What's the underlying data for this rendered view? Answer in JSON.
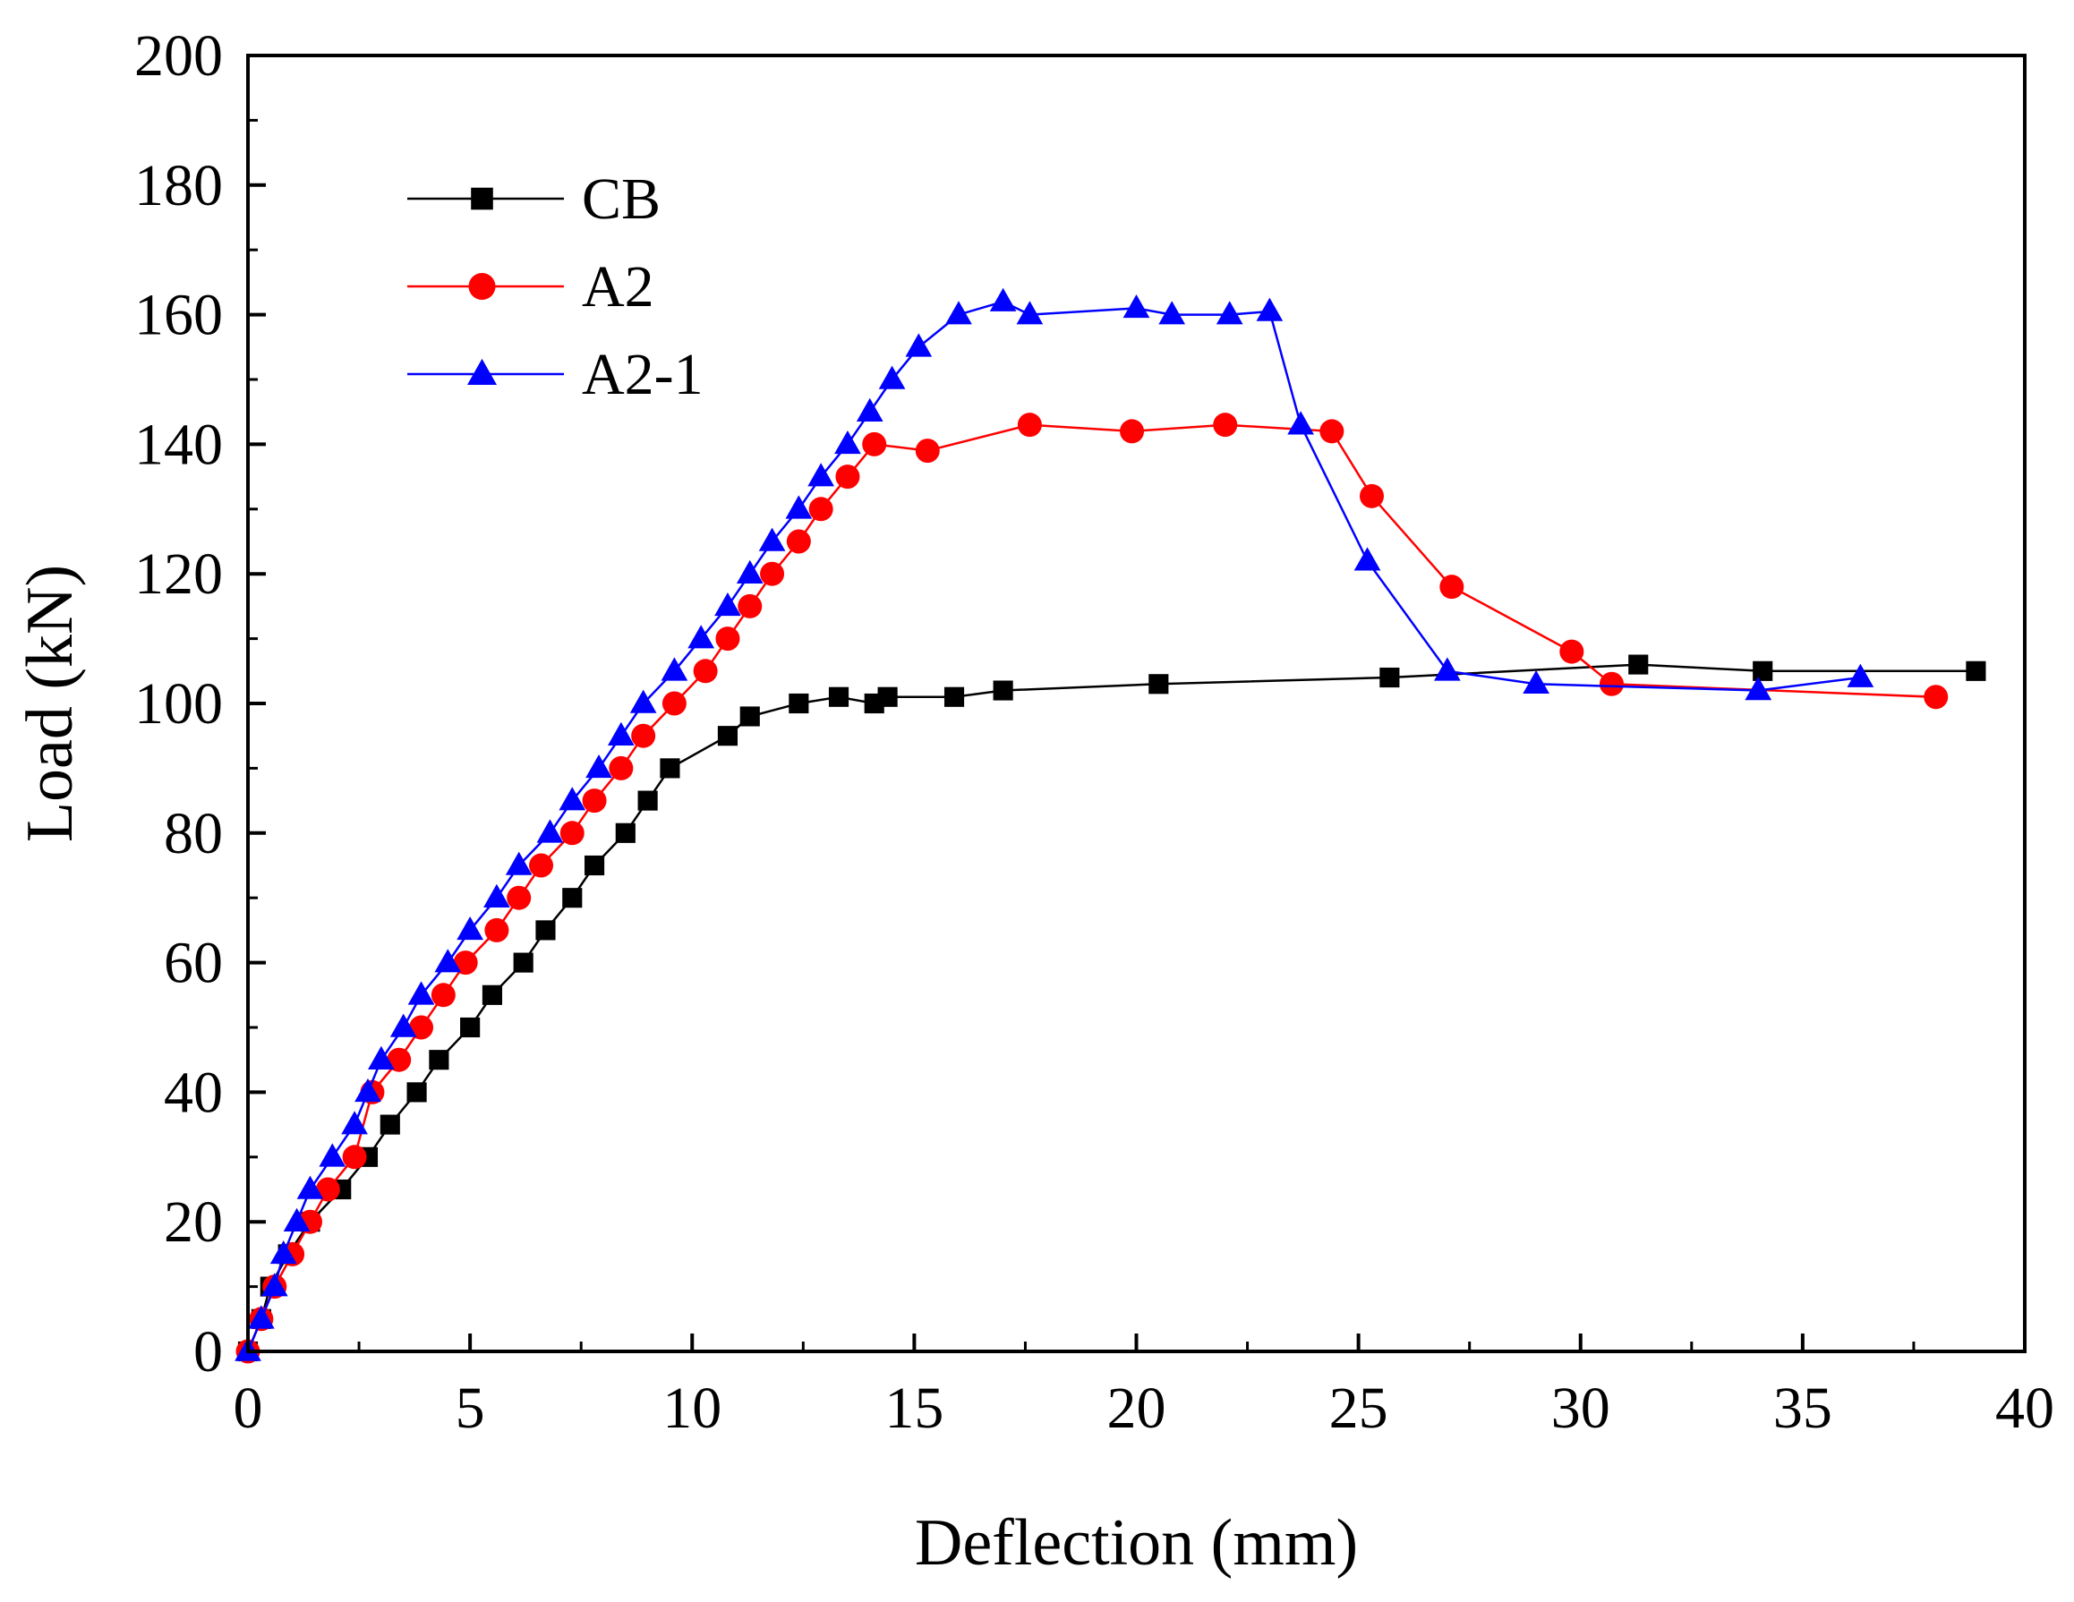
{
  "chart_data": {
    "type": "line",
    "title": "",
    "xlabel": "Deflection (mm)",
    "ylabel": "Load (kN)",
    "xlim": [
      0,
      40
    ],
    "ylim": [
      0,
      200
    ],
    "xticks": [
      0,
      5,
      10,
      15,
      20,
      25,
      30,
      35,
      40
    ],
    "yticks": [
      0,
      20,
      40,
      60,
      80,
      100,
      120,
      140,
      160,
      180,
      200
    ],
    "grid": false,
    "legend_position": "top-left",
    "series": [
      {
        "name": "CB",
        "color": "#000000",
        "marker": "square",
        "x": [
          0,
          0.3,
          0.5,
          0.9,
          1.4,
          2.1,
          2.7,
          3.2,
          3.8,
          4.3,
          5.0,
          5.5,
          6.2,
          6.7,
          7.3,
          7.8,
          8.5,
          9.0,
          9.5,
          10.8,
          11.3,
          12.4,
          13.3,
          14.1,
          14.4,
          15.9,
          17.0,
          20.5,
          25.7,
          31.3,
          34.1,
          38.9
        ],
        "y": [
          0,
          5,
          10,
          15,
          20,
          25,
          30,
          35,
          40,
          45,
          50,
          55,
          60,
          65,
          70,
          75,
          80,
          85,
          90,
          95,
          98,
          100,
          101,
          100,
          101,
          101,
          102,
          103,
          104,
          106,
          105,
          105
        ]
      },
      {
        "name": "A2",
        "color": "#ff0000",
        "marker": "circle",
        "x": [
          0,
          0.3,
          0.6,
          1.0,
          1.4,
          1.8,
          2.4,
          2.8,
          3.4,
          3.9,
          4.4,
          4.9,
          5.6,
          6.1,
          6.6,
          7.3,
          7.8,
          8.4,
          8.9,
          9.6,
          10.3,
          10.8,
          11.3,
          11.8,
          12.4,
          12.9,
          13.5,
          14.1,
          15.3,
          17.6,
          19.9,
          22.0,
          24.4,
          25.3,
          27.1,
          29.8,
          30.7,
          38.0
        ],
        "y": [
          0,
          5,
          10,
          15,
          20,
          25,
          30,
          40,
          45,
          50,
          55,
          60,
          65,
          70,
          75,
          80,
          85,
          90,
          95,
          100,
          105,
          110,
          115,
          120,
          125,
          130,
          135,
          140,
          139,
          143,
          142,
          143,
          142,
          132,
          118,
          108,
          103,
          101
        ]
      },
      {
        "name": "A2-1",
        "color": "#0000ff",
        "marker": "triangle",
        "x": [
          0,
          0.3,
          0.6,
          0.8,
          1.1,
          1.4,
          1.9,
          2.4,
          2.7,
          3.0,
          3.5,
          3.9,
          4.5,
          5.0,
          5.6,
          6.1,
          6.8,
          7.3,
          7.9,
          8.4,
          8.9,
          9.6,
          10.2,
          10.8,
          11.3,
          11.8,
          12.4,
          12.9,
          13.5,
          14.0,
          14.5,
          15.1,
          16.0,
          17.0,
          17.6,
          20.0,
          20.8,
          22.1,
          23.0,
          23.7,
          25.2,
          27.0,
          29.0,
          34.0,
          36.3
        ],
        "y": [
          0,
          5,
          10,
          15,
          20,
          25,
          30,
          35,
          40,
          45,
          50,
          55,
          60,
          65,
          70,
          75,
          80,
          85,
          90,
          95,
          100,
          105,
          110,
          115,
          120,
          125,
          130,
          135,
          140,
          145,
          150,
          155,
          160,
          162,
          160,
          161,
          160,
          160,
          160.5,
          143,
          122,
          105,
          103,
          102,
          104
        ]
      }
    ]
  }
}
